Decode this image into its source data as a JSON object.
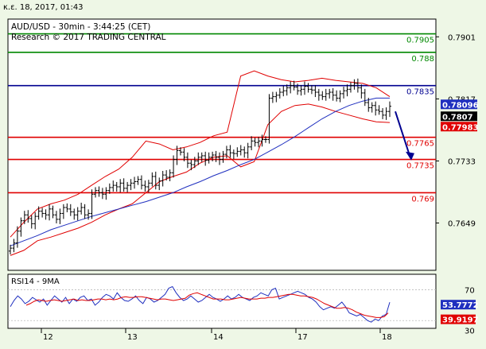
{
  "header": {
    "date_stamp": "κ.ε. 18, 2017, 01:43"
  },
  "main_panel": {
    "title_line1": "AUD/USD - 30min - 3:44:25 (CET)",
    "title_line2": "Research © 2017 TRADING CENTRAL"
  },
  "rsi_panel": {
    "title": "RSI14 - 9MA"
  },
  "colors": {
    "background": "#eef7e6",
    "plot_bg": "#ffffff",
    "support": "#e00000",
    "resistance": "#008800",
    "pivot": "#000090",
    "ma": "#1f2fbf",
    "bollinger": "#e00000",
    "candles": "#000000",
    "arrow": "#000090"
  },
  "chart_data": [
    {
      "type": "candlestick",
      "title": "AUD/USD - 30min - 3:44:25 (CET)",
      "y_axis_ticks": [
        "0.7901",
        "0.7817",
        "0.7733",
        "0.7649"
      ],
      "x_axis_ticks": [
        "12",
        "13",
        "14",
        "17",
        "18"
      ],
      "ylim": [
        0.7585,
        0.7925
      ],
      "levels": [
        {
          "label": "0.7905",
          "value": 0.7905,
          "kind": "resistance"
        },
        {
          "label": "0.788",
          "value": 0.788,
          "kind": "resistance"
        },
        {
          "label": "0.7835",
          "value": 0.7835,
          "kind": "pivot"
        },
        {
          "label": "0.7765",
          "value": 0.7765,
          "kind": "support"
        },
        {
          "label": "0.7735",
          "value": 0.7735,
          "kind": "support"
        },
        {
          "label": "0.769",
          "value": 0.769,
          "kind": "support"
        }
      ],
      "price_badges": [
        {
          "label": "0.78096",
          "value": 0.78096,
          "color": "#1f2fbf"
        },
        {
          "label": "0.7807",
          "value": 0.7807,
          "color": "#000000"
        },
        {
          "label": "0.77983",
          "value": 0.77983,
          "color": "#e00000"
        }
      ],
      "close_series": [
        0.7615,
        0.7622,
        0.7638,
        0.7652,
        0.766,
        0.7655,
        0.7648,
        0.7658,
        0.7665,
        0.7662,
        0.766,
        0.7668,
        0.766,
        0.7654,
        0.7662,
        0.767,
        0.7668,
        0.7664,
        0.766,
        0.7665,
        0.767,
        0.766,
        0.7662,
        0.7688,
        0.7693,
        0.769,
        0.7688,
        0.7693,
        0.7697,
        0.77,
        0.7698,
        0.7703,
        0.7696,
        0.77,
        0.7703,
        0.7705,
        0.7708,
        0.77,
        0.7698,
        0.7703,
        0.7712,
        0.77,
        0.7706,
        0.7714,
        0.7711,
        0.7717,
        0.7735,
        0.7747,
        0.7745,
        0.7738,
        0.773,
        0.7728,
        0.7733,
        0.7738,
        0.774,
        0.7734,
        0.7738,
        0.7741,
        0.7738,
        0.7735,
        0.7742,
        0.7748,
        0.7744,
        0.7743,
        0.7746,
        0.7748,
        0.7744,
        0.7752,
        0.776,
        0.7758,
        0.776,
        0.7762,
        0.7762,
        0.7818,
        0.782,
        0.7822,
        0.7826,
        0.7828,
        0.7832,
        0.7835,
        0.7833,
        0.7828,
        0.783,
        0.7834,
        0.783,
        0.7829,
        0.7826,
        0.7822,
        0.782,
        0.7824,
        0.7826,
        0.7822,
        0.7818,
        0.7824,
        0.7828,
        0.783,
        0.7835,
        0.7838,
        0.7832,
        0.7825,
        0.7812,
        0.7805,
        0.7808,
        0.7802,
        0.78,
        0.7795,
        0.78,
        0.7807
      ],
      "ma_series": [
        0.7618,
        0.7625,
        0.7632,
        0.764,
        0.7646,
        0.7652,
        0.7658,
        0.7663,
        0.7668,
        0.7673,
        0.7678,
        0.7684,
        0.769,
        0.7698,
        0.7705,
        0.7713,
        0.772,
        0.7728,
        0.7735,
        0.7745,
        0.7755,
        0.7766,
        0.7778,
        0.779,
        0.78,
        0.7808,
        0.7814,
        0.7818,
        0.7818
      ],
      "bb_upper": [
        0.763,
        0.765,
        0.7668,
        0.7675,
        0.768,
        0.7688,
        0.77,
        0.7712,
        0.7722,
        0.7738,
        0.776,
        0.7756,
        0.7748,
        0.7752,
        0.7758,
        0.7767,
        0.7772,
        0.7848,
        0.7855,
        0.7848,
        0.7843,
        0.784,
        0.7842,
        0.7845,
        0.7842,
        0.784,
        0.7838,
        0.7832,
        0.782
      ],
      "bb_lower": [
        0.7605,
        0.7612,
        0.7625,
        0.763,
        0.7636,
        0.7642,
        0.765,
        0.766,
        0.7668,
        0.7675,
        0.769,
        0.7705,
        0.7712,
        0.7718,
        0.773,
        0.7738,
        0.774,
        0.7725,
        0.7732,
        0.7782,
        0.78,
        0.7808,
        0.781,
        0.7806,
        0.78,
        0.7795,
        0.779,
        0.7786,
        0.7785
      ]
    },
    {
      "type": "line",
      "title": "RSI14 - 9MA",
      "y_axis_ticks": [
        "70",
        "30"
      ],
      "ylim": [
        20,
        90
      ],
      "rsi_badges": [
        {
          "label": "53.7772",
          "value": 53.7772,
          "color": "#1f2fbf"
        },
        {
          "label": "39.9197",
          "value": 39.9197,
          "color": "#e00000"
        }
      ],
      "rsi_series": [
        48,
        56,
        62,
        58,
        52,
        55,
        60,
        57,
        54,
        58,
        50,
        56,
        62,
        58,
        54,
        60,
        52,
        58,
        55,
        60,
        62,
        56,
        58,
        50,
        54,
        60,
        64,
        62,
        58,
        66,
        60,
        56,
        55,
        58,
        62,
        56,
        52,
        60,
        58,
        54,
        56,
        60,
        64,
        72,
        74,
        66,
        60,
        56,
        58,
        62,
        58,
        54,
        56,
        60,
        64,
        60,
        58,
        55,
        58,
        62,
        58,
        60,
        64,
        60,
        58,
        56,
        60,
        62,
        66,
        64,
        62,
        70,
        72,
        58,
        60,
        62,
        64,
        66,
        68,
        66,
        64,
        60,
        58,
        54,
        48,
        44,
        46,
        48,
        46,
        50,
        54,
        48,
        40,
        38,
        36,
        38,
        34,
        30,
        28,
        32,
        30,
        36,
        38,
        53.7772
      ],
      "ma_series": [
        50,
        52,
        55,
        57,
        56,
        55,
        56,
        57,
        56,
        55,
        56,
        57,
        58,
        56,
        57,
        56,
        56,
        57,
        58,
        58,
        57,
        58,
        57,
        58,
        60,
        61,
        60,
        60,
        61,
        61,
        60,
        59,
        58,
        57,
        58,
        58,
        57,
        56,
        57,
        58,
        59,
        63,
        65,
        66,
        64,
        62,
        60,
        58,
        58,
        58,
        57,
        57,
        58,
        59,
        60,
        59,
        58,
        58,
        58,
        59,
        59,
        60,
        60,
        61,
        62,
        63,
        64,
        64,
        63,
        62,
        62,
        61,
        60,
        58,
        55,
        52,
        50,
        48,
        46,
        46,
        47,
        46,
        44,
        41,
        39,
        37,
        36,
        35,
        34,
        34,
        35,
        39.9197
      ]
    }
  ]
}
